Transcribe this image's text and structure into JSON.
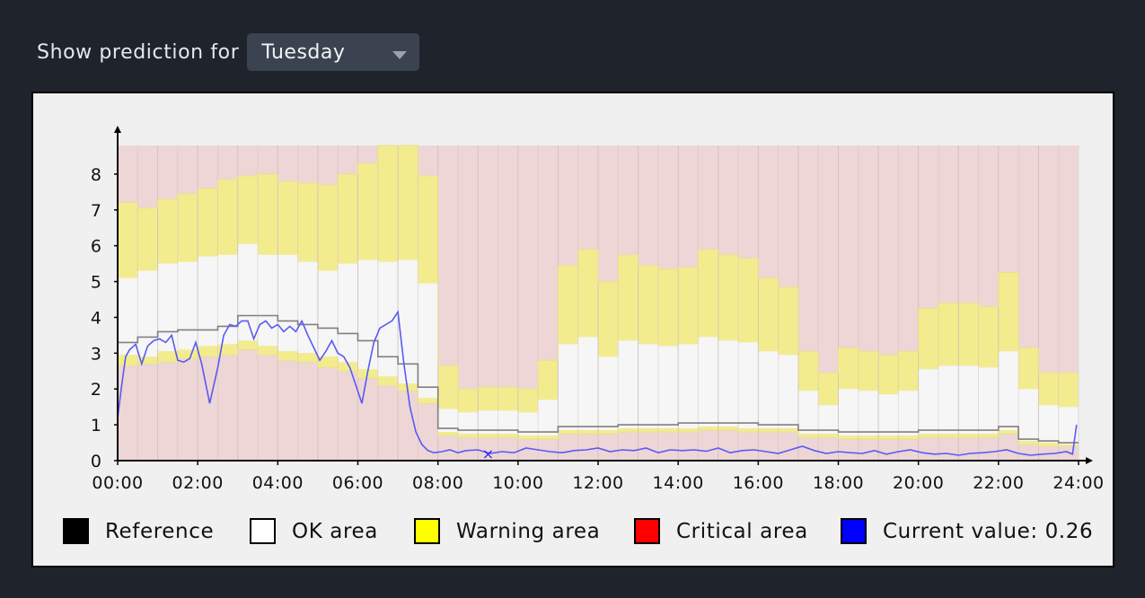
{
  "selector": {
    "label": "Show prediction for",
    "value": "Tuesday"
  },
  "chart_data": {
    "type": "area",
    "title": "",
    "xlabel": "",
    "ylabel": "",
    "ylim": [
      0,
      8.8
    ],
    "yticks": [
      "0",
      "1",
      "2",
      "3",
      "4",
      "5",
      "6",
      "7",
      "8"
    ],
    "xticks": [
      "00:00",
      "02:00",
      "04:00",
      "06:00",
      "08:00",
      "10:00",
      "12:00",
      "14:00",
      "16:00",
      "18:00",
      "20:00",
      "22:00",
      "24:00"
    ],
    "grid": true,
    "legend_position": "bottom",
    "colors": {
      "critical": "#eed6d6",
      "warning": "#f3ec8f",
      "ok": "#f6f6f6",
      "reference": "#808080",
      "current": "#5a5af2",
      "grid": "#cdbcbc"
    },
    "hours": [
      0,
      0.5,
      1,
      1.5,
      2,
      2.5,
      3,
      3.5,
      4,
      4.5,
      5,
      5.5,
      6,
      6.5,
      7,
      7.5,
      8,
      8.5,
      9,
      9.5,
      10,
      10.5,
      11,
      11.5,
      12,
      12.5,
      13,
      13.5,
      14,
      14.5,
      15,
      15.5,
      16,
      16.5,
      17,
      17.5,
      18,
      18.5,
      19,
      19.5,
      20,
      20.5,
      21,
      21.5,
      22,
      22.5,
      23,
      23.5,
      24
    ],
    "series": [
      {
        "name": "Warning area",
        "role": "upper_warn",
        "values": [
          7.2,
          7.05,
          7.3,
          7.45,
          7.6,
          7.85,
          7.95,
          8.0,
          7.8,
          7.75,
          7.7,
          8.0,
          8.3,
          8.8,
          8.8,
          7.95,
          2.65,
          2.0,
          2.05,
          2.05,
          2.0,
          2.8,
          5.45,
          5.9,
          5.0,
          5.75,
          5.45,
          5.35,
          5.4,
          5.9,
          5.75,
          5.65,
          5.1,
          4.85,
          3.05,
          2.45,
          3.15,
          3.05,
          2.95,
          3.05,
          4.25,
          4.4,
          4.4,
          4.3,
          5.25,
          3.15,
          2.45,
          2.45,
          2.45
        ]
      },
      {
        "name": "OK area",
        "role": "upper_ok",
        "values": [
          5.1,
          5.3,
          5.5,
          5.55,
          5.7,
          5.75,
          6.05,
          5.75,
          5.75,
          5.55,
          5.3,
          5.5,
          5.6,
          5.55,
          5.6,
          4.95,
          1.45,
          1.35,
          1.4,
          1.4,
          1.35,
          1.7,
          3.25,
          3.45,
          2.9,
          3.35,
          3.25,
          3.2,
          3.25,
          3.45,
          3.35,
          3.3,
          3.05,
          2.95,
          1.95,
          1.55,
          2.0,
          1.95,
          1.85,
          1.95,
          2.55,
          2.65,
          2.65,
          2.6,
          3.05,
          2.0,
          1.55,
          1.5,
          1.5
        ]
      },
      {
        "name": "Reference",
        "role": "reference",
        "values": [
          3.3,
          3.45,
          3.6,
          3.65,
          3.65,
          3.75,
          4.05,
          4.05,
          3.9,
          3.8,
          3.7,
          3.55,
          3.35,
          2.9,
          2.7,
          2.05,
          0.9,
          0.85,
          0.85,
          0.85,
          0.8,
          0.8,
          0.95,
          0.95,
          0.95,
          1.0,
          1.0,
          1.0,
          1.05,
          1.05,
          1.05,
          1.05,
          1.0,
          1.0,
          0.85,
          0.85,
          0.8,
          0.8,
          0.8,
          0.8,
          0.85,
          0.85,
          0.85,
          0.85,
          0.95,
          0.6,
          0.55,
          0.5,
          0.5
        ]
      },
      {
        "name": "Warning area",
        "role": "lower_ok",
        "values": [
          2.95,
          2.9,
          3.05,
          3.1,
          3.2,
          3.25,
          3.35,
          3.2,
          3.05,
          3.0,
          2.9,
          2.75,
          2.55,
          2.35,
          2.15,
          1.75,
          0.8,
          0.75,
          0.75,
          0.75,
          0.7,
          0.7,
          0.85,
          0.85,
          0.85,
          0.9,
          0.9,
          0.9,
          0.9,
          0.95,
          0.95,
          0.9,
          0.9,
          0.9,
          0.75,
          0.75,
          0.7,
          0.7,
          0.7,
          0.7,
          0.75,
          0.75,
          0.75,
          0.75,
          0.85,
          0.55,
          0.5,
          0.45,
          0.45
        ]
      },
      {
        "name": "Critical area",
        "role": "lower_warn",
        "values": [
          2.65,
          2.7,
          2.75,
          2.85,
          2.9,
          2.95,
          3.1,
          2.95,
          2.8,
          2.75,
          2.6,
          2.5,
          2.3,
          2.1,
          1.95,
          1.6,
          0.7,
          0.65,
          0.65,
          0.65,
          0.6,
          0.6,
          0.75,
          0.75,
          0.75,
          0.8,
          0.8,
          0.8,
          0.8,
          0.85,
          0.85,
          0.8,
          0.8,
          0.8,
          0.65,
          0.65,
          0.6,
          0.6,
          0.6,
          0.6,
          0.65,
          0.65,
          0.65,
          0.65,
          0.75,
          0.45,
          0.4,
          0.4,
          0.4
        ]
      },
      {
        "name": "Current value: 0.26",
        "role": "current",
        "x": [
          0,
          0.1,
          0.2,
          0.3,
          0.45,
          0.6,
          0.75,
          0.9,
          1.05,
          1.2,
          1.35,
          1.5,
          1.65,
          1.8,
          1.95,
          2.1,
          2.3,
          2.5,
          2.65,
          2.8,
          2.95,
          3.1,
          3.25,
          3.4,
          3.55,
          3.7,
          3.85,
          4.0,
          4.15,
          4.3,
          4.45,
          4.6,
          4.75,
          4.9,
          5.05,
          5.2,
          5.35,
          5.5,
          5.65,
          5.8,
          5.95,
          6.1,
          6.25,
          6.4,
          6.55,
          6.7,
          6.85,
          7.0,
          7.15,
          7.3,
          7.45,
          7.6,
          7.75,
          7.9,
          8.1,
          8.3,
          8.5,
          8.7,
          9.0,
          9.3,
          9.6,
          9.9,
          10.2,
          10.5,
          10.8,
          11.1,
          11.4,
          11.7,
          12.0,
          12.3,
          12.6,
          12.9,
          13.2,
          13.5,
          13.8,
          14.1,
          14.4,
          14.7,
          15.0,
          15.3,
          15.6,
          15.9,
          16.2,
          16.5,
          16.8,
          17.1,
          17.4,
          17.7,
          18.0,
          18.3,
          18.6,
          18.9,
          19.2,
          19.5,
          19.8,
          20.1,
          20.4,
          20.7,
          21.0,
          21.3,
          21.6,
          21.9,
          22.2,
          22.5,
          22.8,
          23.1,
          23.4,
          23.7,
          23.85,
          23.95
        ],
        "values": [
          1.2,
          2.1,
          2.9,
          3.1,
          3.25,
          2.7,
          3.2,
          3.35,
          3.4,
          3.3,
          3.5,
          2.8,
          2.75,
          2.85,
          3.3,
          2.7,
          1.6,
          2.6,
          3.5,
          3.8,
          3.75,
          3.9,
          3.9,
          3.4,
          3.8,
          3.9,
          3.7,
          3.8,
          3.6,
          3.75,
          3.6,
          3.9,
          3.5,
          3.15,
          2.8,
          3.05,
          3.35,
          3.0,
          2.9,
          2.6,
          2.1,
          1.6,
          2.5,
          3.3,
          3.7,
          3.8,
          3.9,
          4.15,
          2.7,
          1.5,
          0.8,
          0.45,
          0.28,
          0.22,
          0.25,
          0.3,
          0.22,
          0.28,
          0.3,
          0.2,
          0.25,
          0.22,
          0.35,
          0.3,
          0.25,
          0.22,
          0.28,
          0.3,
          0.35,
          0.25,
          0.3,
          0.28,
          0.35,
          0.22,
          0.3,
          0.28,
          0.3,
          0.26,
          0.35,
          0.22,
          0.28,
          0.3,
          0.25,
          0.2,
          0.3,
          0.4,
          0.28,
          0.2,
          0.25,
          0.22,
          0.2,
          0.28,
          0.18,
          0.25,
          0.3,
          0.22,
          0.18,
          0.2,
          0.15,
          0.2,
          0.22,
          0.25,
          0.3,
          0.2,
          0.15,
          0.18,
          0.2,
          0.25,
          0.18,
          1.0
        ]
      }
    ],
    "marker": {
      "x": 9.25,
      "y": 0.2,
      "symbol": "×"
    },
    "legend": [
      {
        "label": "Reference",
        "color": "#000000"
      },
      {
        "label": "OK area",
        "color": "#ffffff"
      },
      {
        "label": "Warning area",
        "color": "#ffff00"
      },
      {
        "label": "Critical area",
        "color": "#ff0000"
      },
      {
        "label": "Current value: 0.26",
        "color": "#0000ff"
      }
    ]
  }
}
